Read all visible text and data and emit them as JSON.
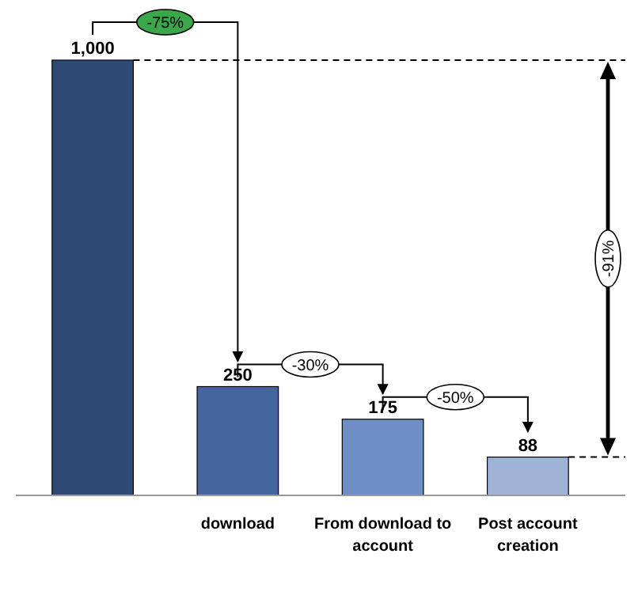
{
  "chart_data": {
    "type": "bar",
    "categories": [
      null,
      "download",
      "From download to account",
      "Post account creation"
    ],
    "values": [
      1000,
      250,
      175,
      88
    ],
    "colors": [
      "#2f4a74",
      "#46659d",
      "#6e8ec4",
      "#9fb3d6"
    ],
    "value_labels": [
      "1,000",
      "250",
      "175",
      "88"
    ],
    "annotations": [
      "-75%",
      "-30%",
      "-50%",
      "-91%"
    ],
    "ref_lines": [
      {
        "axis": "y",
        "value": 1000,
        "line_style": "dashed"
      },
      {
        "axis": "y",
        "value": 88,
        "line_style": "dashed"
      }
    ]
  }
}
